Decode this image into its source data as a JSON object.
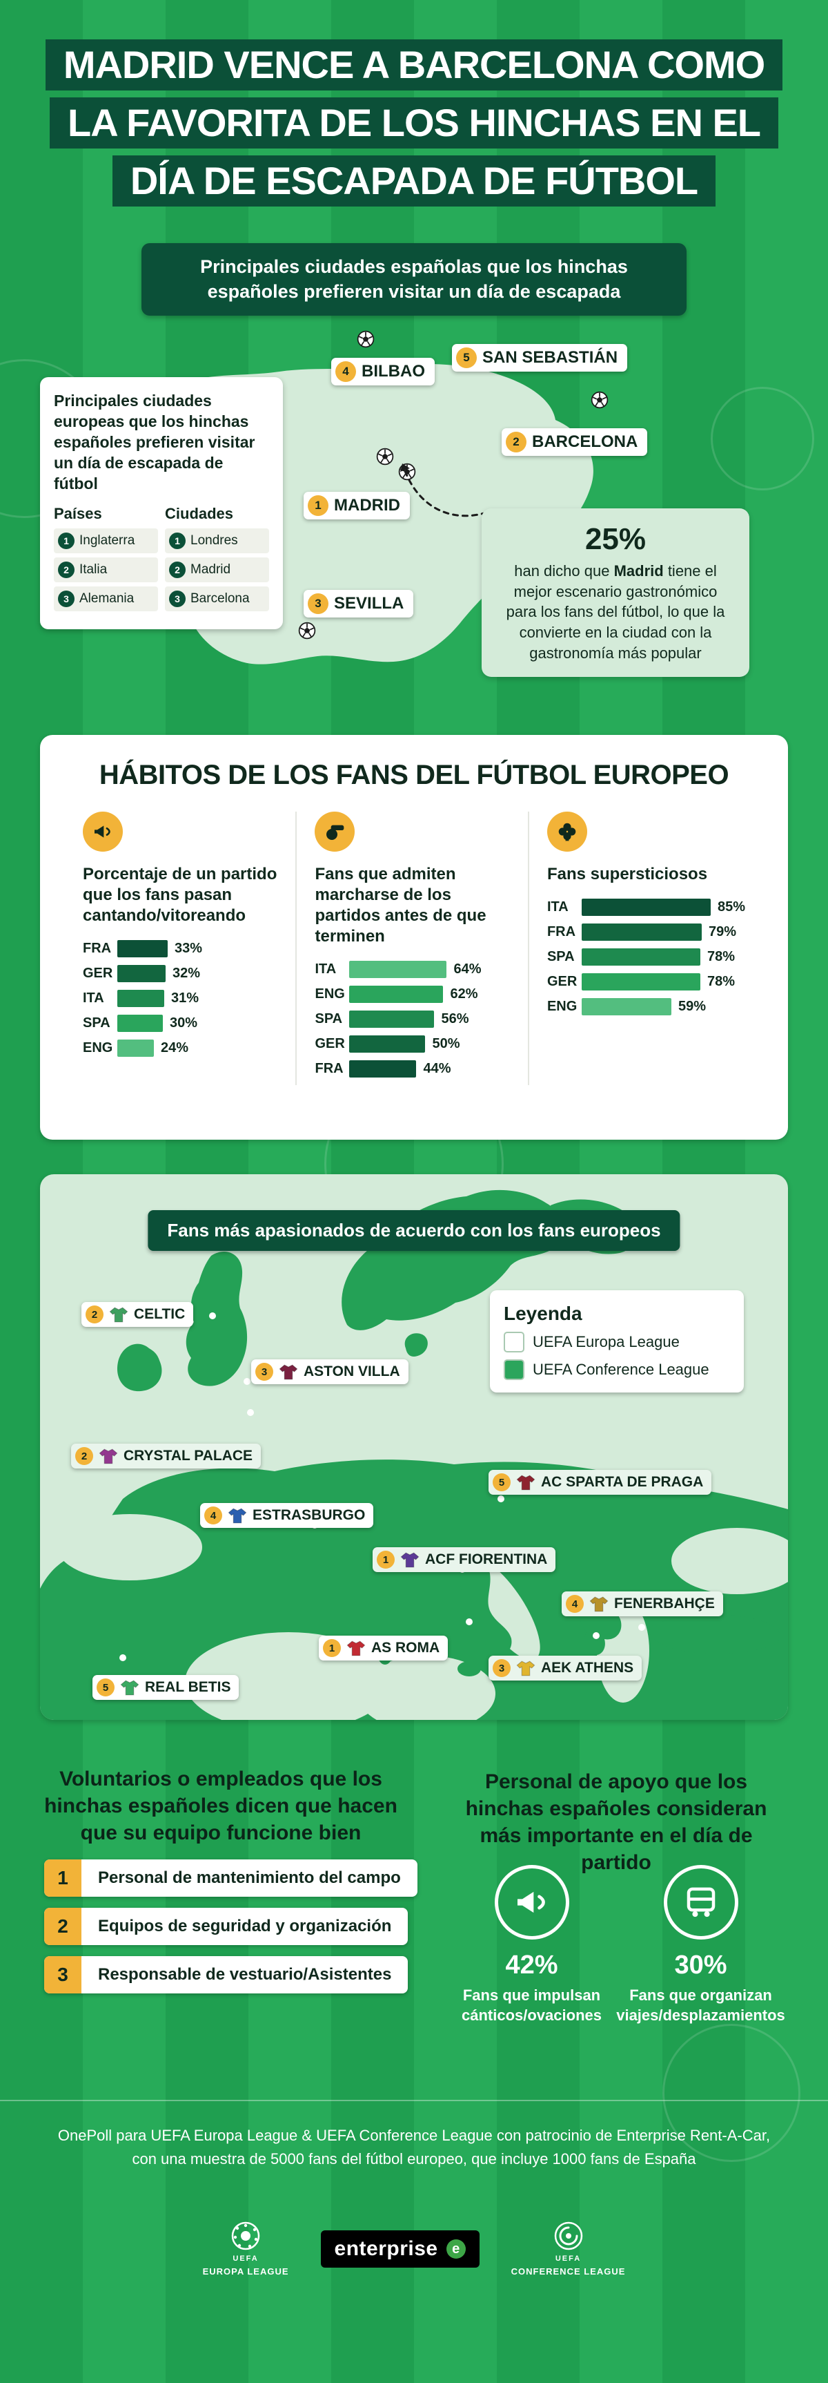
{
  "colors": {
    "pitch_green": "#27AB59",
    "pitch_green_alt": "#1F9F50",
    "dark_green": "#0B5038",
    "light_green": "#D4EBD9",
    "accent_yellow": "#F2B338",
    "land_green": "#24A156",
    "text_dark": "#10291D"
  },
  "header": {
    "lines": [
      "MADRID VENCE A BARCELONA COMO",
      "LA FAVORITA DE LOS HINCHAS EN EL",
      "DÍA DE ESCAPADA DE FÚTBOL"
    ]
  },
  "banner": {
    "text": "Principales ciudades españolas que los hinchas españoles prefieren visitar un día de escapada"
  },
  "spain_map": {
    "cities": [
      {
        "rank": "4",
        "name": "BILBAO"
      },
      {
        "rank": "5",
        "name": "SAN SEBASTIÁN"
      },
      {
        "rank": "2",
        "name": "BARCELONA"
      },
      {
        "rank": "1",
        "name": "MADRID"
      },
      {
        "rank": "3",
        "name": "SEVILLA"
      }
    ]
  },
  "european_ranking": {
    "title": "Principales ciudades europeas que los hinchas españoles prefieren visitar un día de escapada de fútbol",
    "countries_header": "Países",
    "cities_header": "Ciudades",
    "countries": [
      {
        "rank": "1",
        "name": "Inglaterra"
      },
      {
        "rank": "2",
        "name": "Italia"
      },
      {
        "rank": "3",
        "name": "Alemania"
      }
    ],
    "cities": [
      {
        "rank": "1",
        "name": "Londres"
      },
      {
        "rank": "2",
        "name": "Madrid"
      },
      {
        "rank": "3",
        "name": "Barcelona"
      }
    ]
  },
  "madrid_fact": {
    "stat": "25%",
    "text_pre": "han dicho que ",
    "text_bold": "Madrid",
    "text_post": " tiene el mejor escenario gastronómico para los fans del fútbol, lo que la convierte en la ciudad con la gastronomía más popular"
  },
  "habits": {
    "title": "HÁBITOS DE LOS FANS DEL FÚTBOL EUROPEO"
  },
  "chart_data": [
    {
      "type": "bar",
      "title": "Porcentaje de un partido que los fans pasan cantando/vitoreando",
      "icon": "megaphone-icon",
      "unit": "%",
      "categories": [
        "FRA",
        "GER",
        "ITA",
        "SPA",
        "ENG"
      ],
      "values": [
        33,
        32,
        31,
        30,
        24
      ],
      "rows": [
        {
          "label": "FRA",
          "value": 33,
          "display": "33%",
          "color": "#0C5137"
        },
        {
          "label": "GER",
          "value": 32,
          "display": "32%",
          "color": "#12663F"
        },
        {
          "label": "ITA",
          "value": 31,
          "display": "31%",
          "color": "#1E8A4F"
        },
        {
          "label": "SPA",
          "value": 30,
          "display": "30%",
          "color": "#2AA55C"
        },
        {
          "label": "ENG",
          "value": 24,
          "display": "24%",
          "color": "#53BE7F"
        }
      ]
    },
    {
      "type": "bar",
      "title": "Fans que admiten marcharse de los partidos antes de que terminen",
      "icon": "whistle-icon",
      "unit": "%",
      "categories": [
        "ITA",
        "ENG",
        "SPA",
        "GER",
        "FRA"
      ],
      "values": [
        64,
        62,
        56,
        50,
        44
      ],
      "rows": [
        {
          "label": "ITA",
          "value": 64,
          "display": "64%",
          "color": "#53BE7F"
        },
        {
          "label": "ENG",
          "value": 62,
          "display": "62%",
          "color": "#2AA55C"
        },
        {
          "label": "SPA",
          "value": 56,
          "display": "56%",
          "color": "#1E8A4F"
        },
        {
          "label": "GER",
          "value": 50,
          "display": "50%",
          "color": "#12663F"
        },
        {
          "label": "FRA",
          "value": 44,
          "display": "44%",
          "color": "#0C5137"
        }
      ]
    },
    {
      "type": "bar",
      "title": "Fans supersticiosos",
      "icon": "clover-icon",
      "unit": "%",
      "categories": [
        "ITA",
        "FRA",
        "SPA",
        "GER",
        "ENG"
      ],
      "values": [
        85,
        79,
        78,
        78,
        59
      ],
      "rows": [
        {
          "label": "ITA",
          "value": 85,
          "display": "85%",
          "color": "#0C5137"
        },
        {
          "label": "FRA",
          "value": 79,
          "display": "79%",
          "color": "#12663F"
        },
        {
          "label": "SPA",
          "value": 78,
          "display": "78%",
          "color": "#1E8A4F"
        },
        {
          "label": "GER",
          "value": 78,
          "display": "78%",
          "color": "#2AA55C"
        },
        {
          "label": "ENG",
          "value": 59,
          "display": "59%",
          "color": "#53BE7F"
        }
      ]
    }
  ],
  "europe_map": {
    "banner": "Fans más apasionados de acuerdo con los fans europeos",
    "legend": {
      "title": "Leyenda",
      "entries": [
        {
          "label": "UEFA Europa League",
          "color": "#FFFFFF"
        },
        {
          "label": "UEFA Conference League",
          "color": "#2BA55C"
        }
      ]
    },
    "teams": [
      {
        "rank": "2",
        "name": "CELTIC",
        "league": "UEFA Europa League",
        "color": "#3FA060",
        "bg": "#FFFFFF"
      },
      {
        "rank": "3",
        "name": "ASTON VILLA",
        "league": "UEFA Europa League",
        "color": "#7A2140",
        "bg": "#FFFFFF"
      },
      {
        "rank": "2",
        "name": "CRYSTAL PALACE",
        "league": "UEFA Conference League",
        "color": "#93388F",
        "bg": "#E9F5EC"
      },
      {
        "rank": "4",
        "name": "ESTRASBURGO",
        "league": "UEFA Europa League",
        "color": "#2B5FB0",
        "bg": "#FFFFFF"
      },
      {
        "rank": "5",
        "name": "AC SPARTA DE PRAGA",
        "league": "UEFA Conference League",
        "color": "#8E2430",
        "bg": "#E9F5EC"
      },
      {
        "rank": "1",
        "name": "ACF FIORENTINA",
        "league": "UEFA Conference League",
        "color": "#5B3A96",
        "bg": "#E9F5EC"
      },
      {
        "rank": "4",
        "name": "FENERBAHÇE",
        "league": "UEFA Conference League",
        "color": "#B7922A",
        "bg": "#E9F5EC"
      },
      {
        "rank": "1",
        "name": "AS ROMA",
        "league": "UEFA Europa League",
        "color": "#C22B33",
        "bg": "#FFFFFF"
      },
      {
        "rank": "3",
        "name": "AEK ATHENS",
        "league": "UEFA Conference League",
        "color": "#E0B52F",
        "bg": "#E9F5EC"
      },
      {
        "rank": "5",
        "name": "REAL BETIS",
        "league": "UEFA Europa League",
        "color": "#3BAA63",
        "bg": "#FFFFFF"
      }
    ]
  },
  "volunteers": {
    "heading": "Voluntarios o empleados que los hinchas españoles dicen que hacen que su equipo funcione bien",
    "items": [
      {
        "rank": "1",
        "label": "Personal de mantenimiento del campo"
      },
      {
        "rank": "2",
        "label": "Equipos de seguridad y organización"
      },
      {
        "rank": "3",
        "label": "Responsable de vestuario/Asistentes"
      }
    ]
  },
  "support": {
    "heading": "Personal de apoyo que los hinchas españoles consideran más importante en el día de partido",
    "stats": [
      {
        "icon": "megaphone-icon",
        "value": "42%",
        "caption": "Fans que impulsan cánticos/ovaciones"
      },
      {
        "icon": "bus-icon",
        "value": "30%",
        "caption": "Fans que organizan viajes/desplazamientos"
      }
    ]
  },
  "footer": {
    "line1": "OnePoll para UEFA Europa League & UEFA Conference League con patrocinio de Enterprise Rent-A-Car,",
    "line2": "con una muestra de 5000 fans del fútbol europeo, que incluye 1000 fans de España",
    "logos": {
      "uefa": "UEFA",
      "europa": "EUROPA LEAGUE",
      "enterprise": "enterprise",
      "conference": "CONFERENCE LEAGUE"
    }
  }
}
